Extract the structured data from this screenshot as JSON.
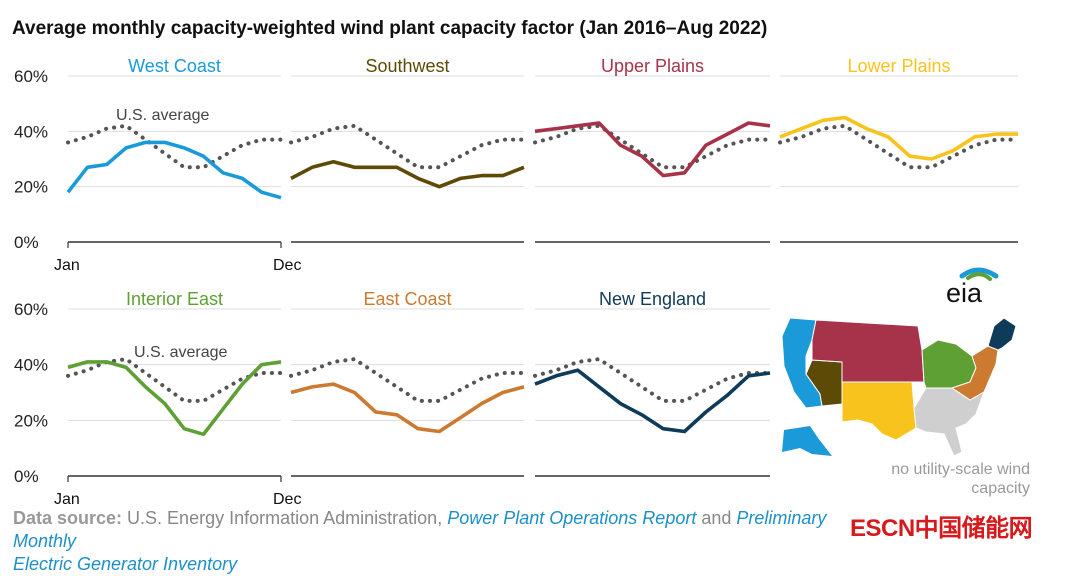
{
  "chart_data": {
    "type": "line",
    "title": "Average monthly capacity-weighted wind plant capacity factor (Jan 2016–Aug 2022)",
    "y_ticks": [
      "60%",
      "40%",
      "20%",
      "0%"
    ],
    "ylim": [
      0,
      60
    ],
    "x_ticks": [
      "Jan",
      "Dec"
    ],
    "months": [
      1,
      2,
      3,
      4,
      5,
      6,
      7,
      8,
      9,
      10,
      11,
      12
    ],
    "us_average_label": "U.S. average",
    "us_average": [
      36,
      38,
      41,
      42,
      37,
      32,
      27,
      27,
      31,
      35,
      37,
      37
    ],
    "panels": [
      {
        "name": "West Coast",
        "color": "#1a9ad9",
        "values": [
          18,
          27,
          28,
          34,
          36,
          36,
          34,
          31,
          25,
          23,
          18,
          16
        ]
      },
      {
        "name": "Southwest",
        "color": "#5c4a06",
        "values": [
          23,
          27,
          29,
          27,
          27,
          27,
          23,
          20,
          23,
          24,
          24,
          27
        ]
      },
      {
        "name": "Upper Plains",
        "color": "#a6334a",
        "values": [
          40,
          41,
          42,
          43,
          35,
          31,
          24,
          25,
          35,
          39,
          43,
          42
        ]
      },
      {
        "name": "Lower Plains",
        "color": "#f8c31c",
        "values": [
          38,
          41,
          44,
          45,
          41,
          38,
          31,
          30,
          33,
          38,
          39,
          39
        ]
      },
      {
        "name": "Interior East",
        "color": "#5fa035",
        "values": [
          39,
          41,
          41,
          39,
          32,
          26,
          17,
          15,
          24,
          33,
          40,
          41
        ]
      },
      {
        "name": "East Coast",
        "color": "#cc7a30",
        "values": [
          30,
          32,
          33,
          30,
          23,
          22,
          17,
          16,
          21,
          26,
          30,
          32
        ]
      },
      {
        "name": "New England",
        "color": "#0f3b5a",
        "values": [
          33,
          36,
          38,
          32,
          26,
          22,
          17,
          16,
          23,
          29,
          36,
          37
        ]
      }
    ],
    "legend": "map (bottom-right)"
  },
  "map_note": "no utility-scale wind capacity",
  "logo": "eia",
  "source": {
    "prefix": "Data source:",
    "agency": " U.S. Energy Information Administration, ",
    "link1": "Power Plant Operations Report",
    "and": " and ",
    "link2_line1": "Preliminary Monthly",
    "link2_line2": "Electric Generator Inventory"
  },
  "watermark": "ESCN中国储能网",
  "colors": {
    "us_average": "#555555",
    "no_capacity": "#cfcfcf"
  }
}
